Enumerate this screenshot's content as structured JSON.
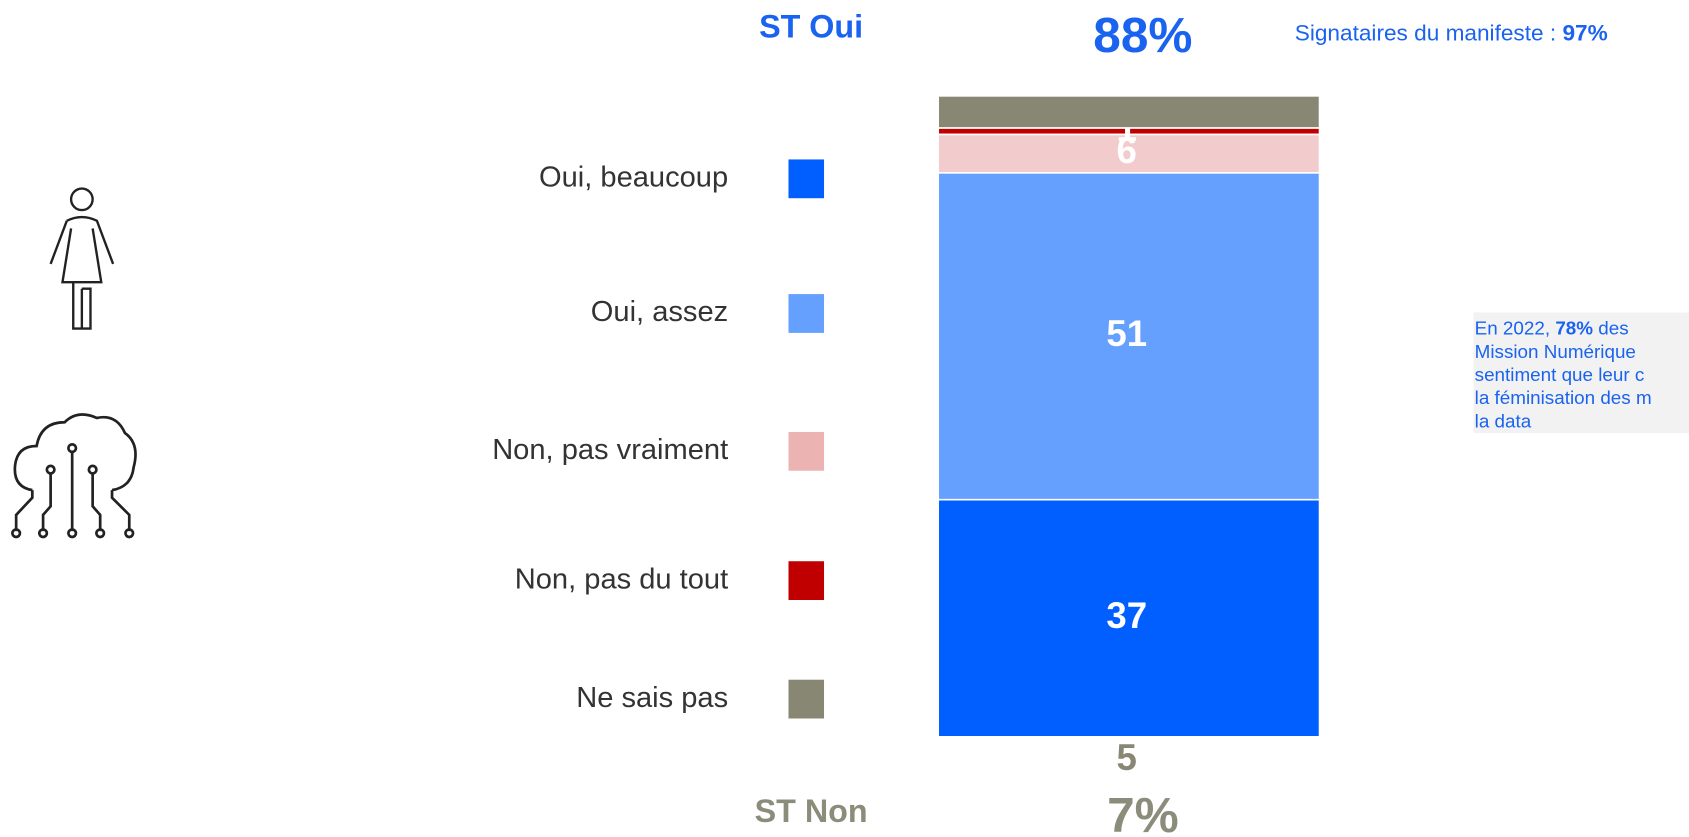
{
  "chart_data": {
    "type": "stacked_bar",
    "ylim": [
      0,
      100
    ],
    "series": [
      {
        "name": "Oui, beaucoup",
        "color": "#005ffe",
        "values": [
          37
        ]
      },
      {
        "name": "Oui, assez",
        "color": "#66a0ff",
        "values": [
          51
        ]
      },
      {
        "name": "Non, pas vraiment",
        "color": "#f2cccc",
        "values": [
          6
        ]
      },
      {
        "name": "Non, pas du tout",
        "color": "#c00000",
        "values": [
          1
        ]
      },
      {
        "name": "Ne sais pas",
        "color": "#878773",
        "values": [
          5
        ]
      }
    ],
    "totals": {
      "labels": [
        "ST Oui",
        "ST Non"
      ],
      "values": [
        88,
        7
      ],
      "value_labels": [
        "88%",
        "7%"
      ],
      "colors": [
        "#1a63f0",
        "#8c8c7a"
      ]
    },
    "annotation": {
      "text": "Signataires du manifeste : ",
      "bold": "97%"
    },
    "note": {
      "lines": [
        [
          "En 2022, ",
          "78%",
          " des"
        ],
        [
          "Mission Numérique"
        ],
        [
          "sentiment que leur c"
        ],
        [
          "la féminisation des m"
        ],
        [
          "la data"
        ]
      ]
    }
  }
}
